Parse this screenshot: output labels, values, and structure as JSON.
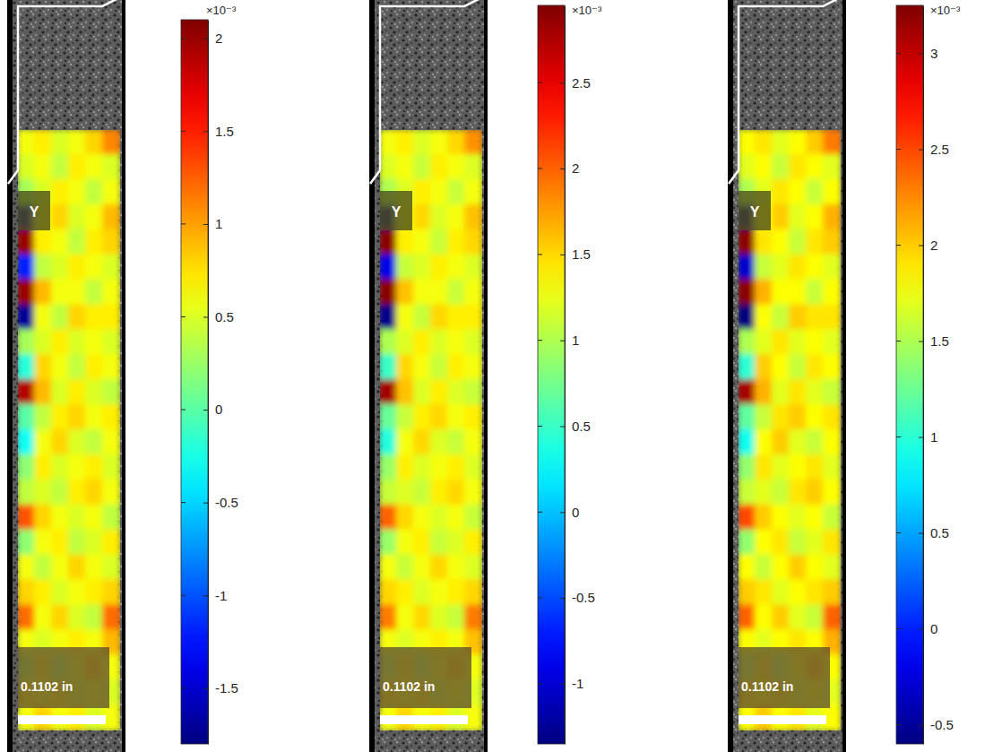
{
  "chart_data": [
    {
      "type": "heatmap",
      "annotations": [
        "Y",
        "0.1102 in"
      ],
      "colorbar_label": "×10⁻³",
      "colorbar_lim": [
        -1.8,
        2.1
      ],
      "colorbar_ticks": [
        -1.5,
        -1,
        -0.5,
        0,
        0.5,
        1,
        1.5,
        2
      ],
      "cells": [
        [
          0.6,
          0.7,
          0.5,
          0.6,
          0.8,
          1.1
        ],
        [
          0.5,
          0.6,
          0.4,
          0.7,
          0.6,
          0.5
        ],
        [
          0.3,
          0.5,
          0.7,
          0.6,
          0.4,
          0.6
        ],
        [
          -1.7,
          0.6,
          0.8,
          0.5,
          0.6,
          0.9
        ],
        [
          2.0,
          0.7,
          0.6,
          0.4,
          0.7,
          0.8
        ],
        [
          -1.2,
          0.4,
          0.5,
          0.7,
          0.6,
          0.5
        ],
        [
          2.0,
          0.9,
          0.6,
          0.6,
          0.4,
          0.6
        ],
        [
          -1.7,
          0.6,
          0.4,
          0.8,
          0.7,
          0.7
        ],
        [
          0.3,
          0.5,
          0.7,
          0.5,
          0.6,
          0.5
        ],
        [
          -0.2,
          0.8,
          0.6,
          0.4,
          0.7,
          0.6
        ],
        [
          1.9,
          0.9,
          0.5,
          0.7,
          0.5,
          0.4
        ],
        [
          0.0,
          0.4,
          0.7,
          0.8,
          0.6,
          0.7
        ],
        [
          -0.3,
          0.6,
          0.8,
          0.5,
          0.4,
          0.6
        ],
        [
          0.2,
          0.7,
          0.5,
          0.6,
          0.7,
          0.5
        ],
        [
          0.4,
          0.5,
          0.4,
          0.7,
          0.8,
          0.6
        ],
        [
          1.3,
          0.8,
          0.6,
          0.5,
          0.6,
          0.4
        ],
        [
          0.2,
          0.6,
          0.7,
          0.4,
          0.5,
          0.7
        ],
        [
          0.6,
          0.4,
          0.6,
          0.8,
          0.6,
          0.5
        ],
        [
          0.8,
          0.7,
          0.5,
          0.6,
          0.7,
          0.8
        ],
        [
          1.2,
          0.6,
          0.8,
          0.5,
          0.4,
          1.2
        ],
        [
          0.6,
          0.5,
          0.6,
          0.7,
          0.6,
          0.9
        ],
        [
          0.4,
          0.7,
          0.4,
          0.6,
          0.8,
          0.6
        ],
        [
          0.7,
          0.6,
          0.7,
          0.5,
          0.6,
          0.5
        ],
        [
          0.6,
          0.8,
          0.6,
          0.7,
          0.5,
          0.6
        ]
      ]
    },
    {
      "type": "heatmap",
      "annotations": [
        "Y",
        "0.1102 in"
      ],
      "colorbar_label": "×10⁻³",
      "colorbar_lim": [
        -1.35,
        2.95
      ],
      "colorbar_ticks": [
        -1,
        -0.5,
        0,
        0.5,
        1,
        1.5,
        2,
        2.5
      ],
      "cells": [
        [
          1.3,
          1.4,
          1.2,
          1.3,
          1.5,
          1.8
        ],
        [
          1.2,
          1.3,
          1.1,
          1.4,
          1.3,
          1.2
        ],
        [
          1.0,
          1.2,
          1.4,
          1.3,
          1.1,
          1.3
        ],
        [
          -1.3,
          1.3,
          1.5,
          1.2,
          1.3,
          1.6
        ],
        [
          2.9,
          1.4,
          1.3,
          1.1,
          1.4,
          1.5
        ],
        [
          -0.9,
          1.1,
          1.2,
          1.4,
          1.3,
          1.2
        ],
        [
          2.9,
          1.6,
          1.3,
          1.3,
          1.1,
          1.3
        ],
        [
          -1.3,
          1.3,
          1.1,
          1.5,
          1.4,
          1.4
        ],
        [
          1.0,
          1.2,
          1.4,
          1.2,
          1.3,
          1.2
        ],
        [
          0.5,
          1.5,
          1.3,
          1.1,
          1.4,
          1.3
        ],
        [
          2.8,
          1.6,
          1.2,
          1.4,
          1.2,
          1.1
        ],
        [
          0.7,
          1.1,
          1.4,
          1.5,
          1.3,
          1.4
        ],
        [
          0.4,
          1.3,
          1.5,
          1.2,
          1.1,
          1.3
        ],
        [
          0.9,
          1.4,
          1.2,
          1.3,
          1.4,
          1.2
        ],
        [
          1.1,
          1.2,
          1.1,
          1.4,
          1.5,
          1.3
        ],
        [
          2.0,
          1.5,
          1.3,
          1.2,
          1.3,
          1.1
        ],
        [
          0.9,
          1.3,
          1.4,
          1.1,
          1.2,
          1.4
        ],
        [
          1.3,
          1.1,
          1.3,
          1.5,
          1.3,
          1.2
        ],
        [
          1.5,
          1.4,
          1.2,
          1.3,
          1.4,
          1.5
        ],
        [
          1.9,
          1.3,
          1.5,
          1.2,
          1.1,
          1.9
        ],
        [
          1.3,
          1.2,
          1.3,
          1.4,
          1.3,
          1.6
        ],
        [
          1.1,
          1.4,
          1.1,
          1.3,
          1.5,
          1.3
        ],
        [
          1.4,
          1.3,
          1.4,
          1.2,
          1.3,
          1.2
        ],
        [
          1.3,
          1.5,
          1.3,
          1.4,
          1.2,
          1.3
        ]
      ]
    },
    {
      "type": "heatmap",
      "annotations": [
        "Y",
        "0.1102 in"
      ],
      "colorbar_label": "×10⁻³",
      "colorbar_lim": [
        -0.6,
        3.25
      ],
      "colorbar_ticks": [
        -0.5,
        0,
        0.5,
        1,
        1.5,
        2,
        2.5,
        3
      ],
      "cells": [
        [
          1.8,
          1.9,
          1.7,
          1.8,
          2.0,
          2.3
        ],
        [
          1.7,
          1.8,
          1.6,
          1.9,
          1.8,
          1.7
        ],
        [
          1.5,
          1.7,
          1.9,
          1.8,
          1.6,
          1.8
        ],
        [
          -0.6,
          1.8,
          2.0,
          1.7,
          1.8,
          2.1
        ],
        [
          3.2,
          1.9,
          1.8,
          1.6,
          1.9,
          2.0
        ],
        [
          -0.3,
          1.6,
          1.7,
          1.9,
          1.8,
          1.7
        ],
        [
          3.2,
          2.1,
          1.8,
          1.8,
          1.6,
          1.8
        ],
        [
          -0.6,
          1.8,
          1.6,
          2.0,
          1.9,
          1.9
        ],
        [
          1.5,
          1.7,
          1.9,
          1.7,
          1.8,
          1.7
        ],
        [
          1.0,
          2.0,
          1.8,
          1.6,
          1.9,
          1.8
        ],
        [
          3.1,
          2.1,
          1.7,
          1.9,
          1.7,
          1.6
        ],
        [
          1.2,
          1.6,
          1.9,
          2.0,
          1.8,
          1.9
        ],
        [
          0.9,
          1.8,
          2.0,
          1.7,
          1.6,
          1.8
        ],
        [
          1.4,
          1.9,
          1.7,
          1.8,
          1.9,
          1.7
        ],
        [
          1.6,
          1.7,
          1.6,
          1.9,
          2.0,
          1.8
        ],
        [
          2.5,
          2.0,
          1.8,
          1.7,
          1.8,
          1.6
        ],
        [
          1.4,
          1.8,
          1.9,
          1.6,
          1.7,
          1.9
        ],
        [
          1.8,
          1.6,
          1.8,
          2.0,
          1.8,
          1.7
        ],
        [
          2.0,
          1.9,
          1.7,
          1.8,
          1.9,
          2.0
        ],
        [
          2.4,
          1.8,
          2.0,
          1.7,
          1.6,
          2.4
        ],
        [
          1.8,
          1.7,
          1.8,
          1.9,
          1.8,
          2.1
        ],
        [
          1.6,
          1.9,
          1.6,
          1.8,
          2.0,
          1.8
        ],
        [
          1.9,
          1.8,
          1.9,
          1.7,
          1.8,
          1.7
        ],
        [
          1.8,
          2.0,
          1.8,
          1.9,
          1.7,
          1.8
        ]
      ]
    }
  ]
}
